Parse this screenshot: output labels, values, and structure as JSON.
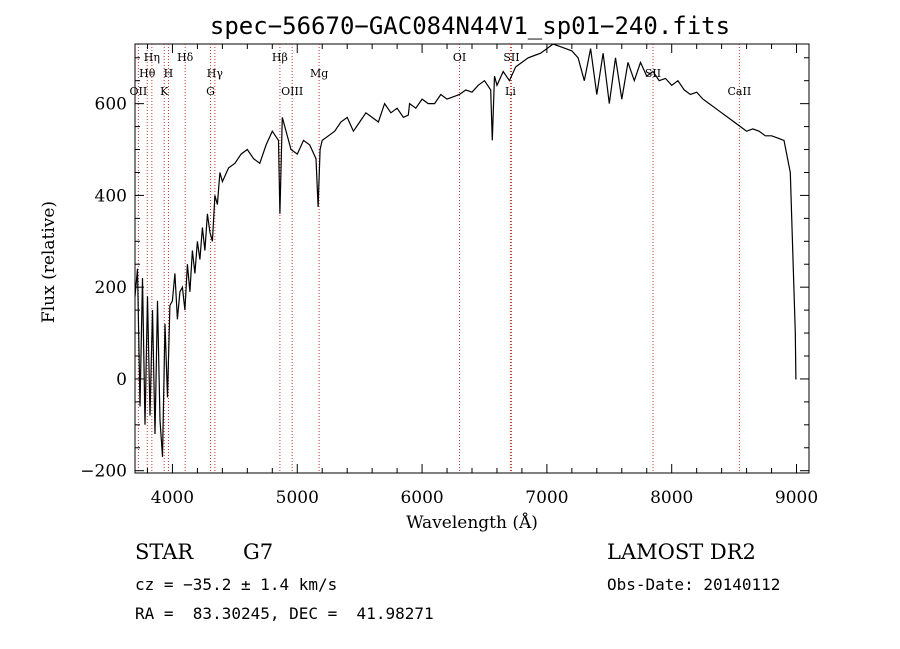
{
  "page": {
    "object_type": "STAR",
    "subclass": "G7",
    "survey": "LAMOST DR2",
    "cz": "cz = −35.2 ± 1.4 km/s",
    "obs_date": "Obs-Date: 20140112",
    "coords": "RA =  83.30245, DEC =  41.98271"
  },
  "chart_data": {
    "type": "line",
    "title": "spec−56670−GAC084N44V1_sp01−240.fits",
    "xlabel": "Wavelength (Å)",
    "ylabel": "Flux (relative)",
    "xlim": [
      3700,
      9100
    ],
    "ylim": [
      -205,
      730
    ],
    "x_ticks": [
      4000,
      5000,
      6000,
      7000,
      8000,
      9000
    ],
    "y_ticks": [
      -200,
      0,
      200,
      400,
      600
    ],
    "grid": false,
    "spectrum": {
      "x": [
        3700,
        3720,
        3740,
        3760,
        3780,
        3800,
        3820,
        3840,
        3860,
        3880,
        3900,
        3920,
        3940,
        3960,
        3980,
        4000,
        4020,
        4040,
        4060,
        4080,
        4100,
        4120,
        4140,
        4160,
        4180,
        4200,
        4220,
        4240,
        4260,
        4280,
        4300,
        4320,
        4340,
        4360,
        4380,
        4400,
        4450,
        4500,
        4550,
        4600,
        4650,
        4700,
        4750,
        4800,
        4850,
        4861,
        4880,
        4900,
        4950,
        5000,
        5050,
        5100,
        5150,
        5167,
        5183,
        5200,
        5250,
        5300,
        5350,
        5400,
        5450,
        5500,
        5550,
        5600,
        5650,
        5700,
        5750,
        5800,
        5850,
        5890,
        5900,
        5950,
        6000,
        6050,
        6100,
        6150,
        6200,
        6250,
        6300,
        6350,
        6400,
        6450,
        6500,
        6550,
        6563,
        6580,
        6600,
        6650,
        6700,
        6750,
        6800,
        6850,
        6900,
        6950,
        7000,
        7050,
        7100,
        7150,
        7200,
        7250,
        7300,
        7350,
        7400,
        7450,
        7500,
        7550,
        7600,
        7650,
        7700,
        7750,
        7800,
        7850,
        7900,
        7950,
        8000,
        8050,
        8100,
        8150,
        8200,
        8250,
        8300,
        8350,
        8400,
        8450,
        8500,
        8550,
        8600,
        8650,
        8700,
        8750,
        8800,
        8850,
        8900,
        8950,
        8990,
        8995,
        9000
      ],
      "y": [
        180,
        240,
        -60,
        220,
        -100,
        180,
        -80,
        150,
        -120,
        170,
        -90,
        -170,
        120,
        -40,
        160,
        170,
        230,
        130,
        190,
        200,
        150,
        250,
        190,
        280,
        230,
        300,
        260,
        330,
        280,
        360,
        320,
        300,
        400,
        380,
        450,
        430,
        460,
        470,
        490,
        500,
        480,
        470,
        510,
        540,
        520,
        360,
        570,
        550,
        500,
        490,
        520,
        510,
        480,
        375,
        500,
        520,
        530,
        540,
        560,
        570,
        540,
        560,
        580,
        570,
        560,
        600,
        580,
        590,
        570,
        575,
        600,
        590,
        610,
        600,
        600,
        620,
        610,
        615,
        620,
        630,
        625,
        640,
        650,
        630,
        520,
        660,
        640,
        670,
        650,
        680,
        690,
        700,
        705,
        710,
        720,
        730,
        725,
        720,
        715,
        700,
        650,
        720,
        620,
        710,
        600,
        700,
        610,
        690,
        650,
        690,
        660,
        670,
        650,
        655,
        640,
        650,
        630,
        620,
        625,
        610,
        600,
        590,
        580,
        570,
        560,
        550,
        540,
        545,
        540,
        530,
        530,
        525,
        520,
        450,
        100,
        0,
        0
      ]
    },
    "spectral_lines": [
      {
        "label": "OII",
        "wavelength": 3727,
        "row": 3
      },
      {
        "label": "Hθ",
        "wavelength": 3798,
        "row": 2
      },
      {
        "label": "Hη",
        "wavelength": 3835,
        "row": 1
      },
      {
        "label": "H",
        "wavelength": 3968,
        "row": 2
      },
      {
        "label": "K",
        "wavelength": 3934,
        "row": 3
      },
      {
        "label": "Hδ",
        "wavelength": 4102,
        "row": 1
      },
      {
        "label": "Hγ",
        "wavelength": 4340,
        "row": 2
      },
      {
        "label": "G",
        "wavelength": 4305,
        "row": 3
      },
      {
        "label": "Hβ",
        "wavelength": 4861,
        "row": 1
      },
      {
        "label": "OIII",
        "wavelength": 4959,
        "row": 3
      },
      {
        "label": "Mg",
        "wavelength": 5175,
        "row": 2
      },
      {
        "label": "OI",
        "wavelength": 6300,
        "row": 1
      },
      {
        "label": "SII",
        "wavelength": 6716,
        "row": 1
      },
      {
        "label": "Li",
        "wavelength": 6708,
        "row": 3
      },
      {
        "label": "SII",
        "wavelength": 7850,
        "row": 2
      },
      {
        "label": "CaII",
        "wavelength": 8542,
        "row": 3
      }
    ],
    "line_color": "#000000",
    "marker_color": "#c0392b"
  }
}
